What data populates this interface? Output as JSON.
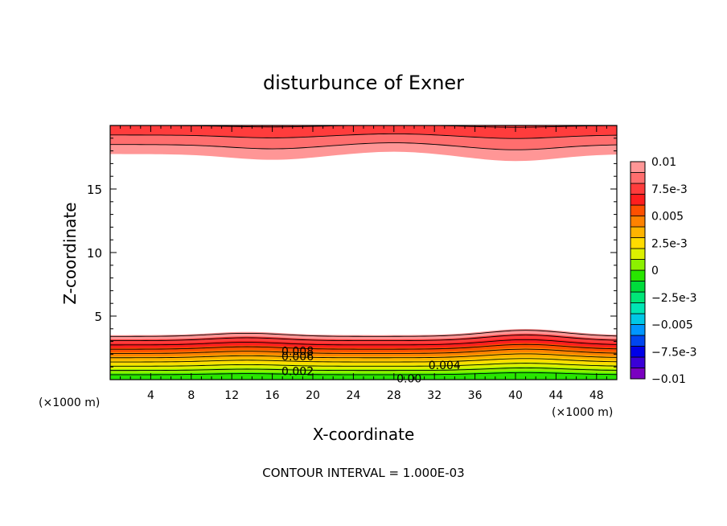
{
  "chart_data": {
    "type": "heatmap",
    "title": "disturbunce of Exner",
    "xlabel": "X-coordinate",
    "ylabel": "Z-coordinate",
    "x_unit_label": "(×1000 m)",
    "y_unit_label": "(×1000 m)",
    "xlim": [
      0,
      50
    ],
    "ylim": [
      0,
      20
    ],
    "x_ticks": [
      4,
      8,
      12,
      16,
      20,
      24,
      28,
      32,
      36,
      40,
      44,
      48
    ],
    "y_ticks": [
      5,
      10,
      15
    ],
    "footer": "CONTOUR INTERVAL = 1.000E-03",
    "colorbar": {
      "min": -0.01,
      "max": 0.01,
      "labels": [
        {
          "value": 0.01,
          "text": "0.01"
        },
        {
          "value": 0.0075,
          "text": "7.5e-3"
        },
        {
          "value": 0.005,
          "text": "0.005"
        },
        {
          "value": 0.0025,
          "text": "2.5e-3"
        },
        {
          "value": 0,
          "text": "0"
        },
        {
          "value": -0.0025,
          "text": "-2.5e-3"
        },
        {
          "value": -0.005,
          "text": "-0.005"
        },
        {
          "value": -0.0075,
          "text": "-7.5e-3"
        },
        {
          "value": -0.01,
          "text": "-0.01"
        }
      ],
      "colors": [
        "#7a00c0",
        "#3a00d8",
        "#0000e8",
        "#0046f0",
        "#0096ff",
        "#00c8e6",
        "#00e6b4",
        "#00e678",
        "#00dc3c",
        "#28e600",
        "#8cf000",
        "#dcf000",
        "#ffdc00",
        "#ffb400",
        "#ff8200",
        "#ff5000",
        "#ff1e1e",
        "#ff3c3c",
        "#ff6e6e",
        "#ff9696"
      ]
    },
    "contour_labels": [
      {
        "x": 18.5,
        "z": 2.25,
        "text": "0.008"
      },
      {
        "x": 18.5,
        "z": 1.85,
        "text": "0.006"
      },
      {
        "x": 18.5,
        "z": 0.65,
        "text": "0.002"
      },
      {
        "x": 33,
        "z": 1.15,
        "text": "0.004"
      },
      {
        "x": 29.5,
        "z": 0.08,
        "text": "0.00"
      }
    ],
    "field_description_bands": {
      "bottom": {
        "levels": [
          0.0,
          0.001,
          0.002,
          0.003,
          0.004,
          0.005,
          0.006,
          0.007,
          0.008,
          0.009
        ],
        "colors": [
          "#28e600",
          "#8cf000",
          "#dcf000",
          "#ffdc00",
          "#ffb400",
          "#ff8200",
          "#ff5000",
          "#ff1e1e",
          "#ff3c3c",
          "#ff9696"
        ]
      },
      "top": {
        "colors": [
          "#ff9696",
          "#ff6e6e",
          "#ff3c3c"
        ]
      }
    }
  }
}
